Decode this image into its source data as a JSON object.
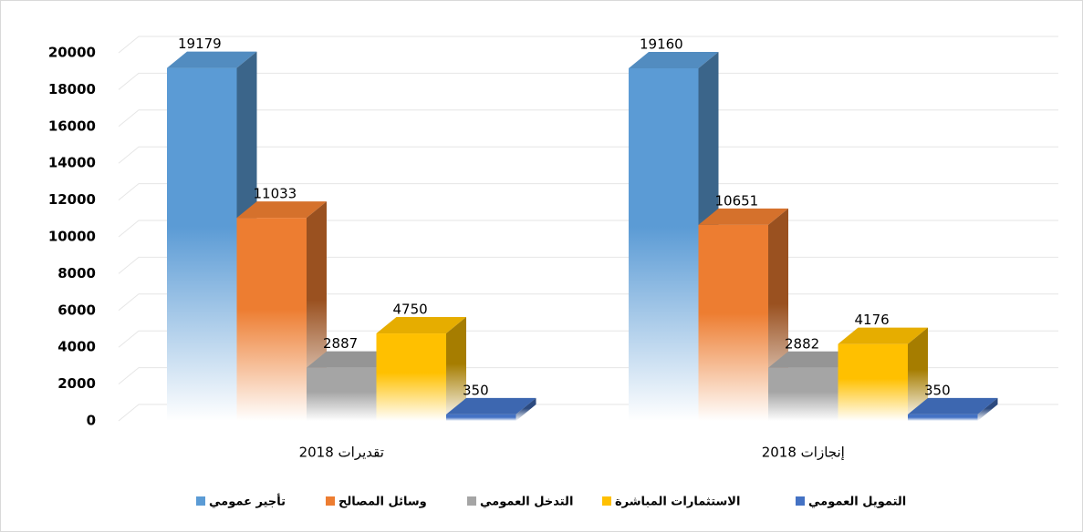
{
  "chart_data": {
    "type": "bar3d",
    "categories": [
      "تقديرات 2018",
      "إنجازات 2018"
    ],
    "series": [
      {
        "name": "تأجير عمومي",
        "color": "#5b9bd5",
        "values": [
          19179,
          19160
        ]
      },
      {
        "name": "وسائل المصالح",
        "color": "#ed7d31",
        "values": [
          11033,
          10651
        ]
      },
      {
        "name": "التدخل العمومي",
        "color": "#a5a5a5",
        "values": [
          2887,
          2882
        ]
      },
      {
        "name": "الاستثمارات المباشرة",
        "color": "#ffc000",
        "values": [
          4750,
          4176
        ]
      },
      {
        "name": "التمويل العمومي",
        "color": "#4472c4",
        "values": [
          350,
          350
        ]
      }
    ],
    "ylim": [
      0,
      20000
    ],
    "yticks": [
      0,
      2000,
      4000,
      6000,
      8000,
      10000,
      12000,
      14000,
      16000,
      18000,
      20000
    ],
    "grid": true,
    "legend": "bottom"
  }
}
